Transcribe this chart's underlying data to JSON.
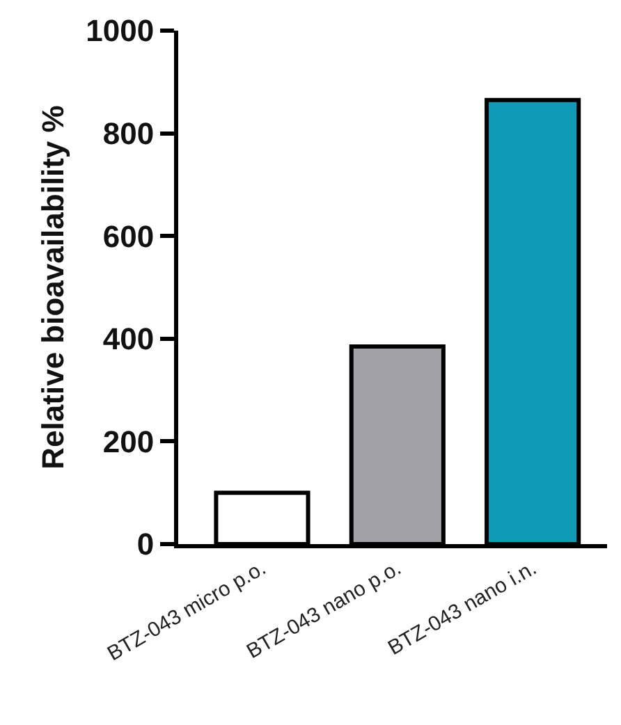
{
  "chart_data": {
    "type": "bar",
    "ylabel": "Relative bioavailability %",
    "categories": [
      "BTZ-043 micro p.o.",
      "BTZ-043 nano p.o.",
      "BTZ-043 nano i.n."
    ],
    "values": [
      100,
      385,
      865
    ],
    "colors": [
      "#ffffff",
      "#a3a2a8",
      "#0f9bb5"
    ],
    "ylim": [
      0,
      1000
    ],
    "yticks": [
      0,
      200,
      400,
      600,
      800,
      1000
    ],
    "grid": false
  }
}
